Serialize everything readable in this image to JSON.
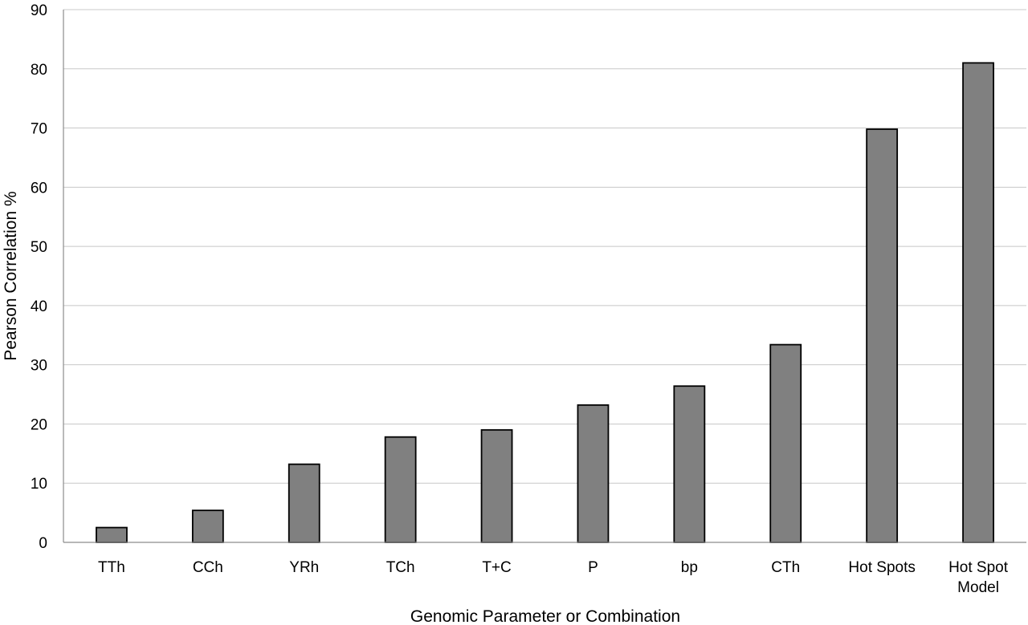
{
  "chart_data": {
    "type": "bar",
    "title": "",
    "xlabel": "Genomic Parameter or Combination",
    "ylabel": "Pearson Correlation %",
    "categories": [
      [
        "TTh"
      ],
      [
        "CCh"
      ],
      [
        "YRh"
      ],
      [
        "TCh"
      ],
      [
        "T+C"
      ],
      [
        "P"
      ],
      [
        "bp"
      ],
      [
        "CTh"
      ],
      [
        "Hot Spots"
      ],
      [
        "Hot Spot",
        "Model"
      ]
    ],
    "values": [
      2.5,
      5.4,
      13.2,
      17.8,
      19.0,
      23.2,
      26.4,
      33.4,
      69.8,
      81.0
    ],
    "ylim": [
      0,
      90
    ],
    "yticks": [
      0,
      10,
      20,
      30,
      40,
      50,
      60,
      70,
      80,
      90
    ],
    "grid": true,
    "legend": "none",
    "colors": {
      "bar_fill": "#808080",
      "bar_edge": "#000000",
      "grid": "#c8c8c8"
    }
  }
}
